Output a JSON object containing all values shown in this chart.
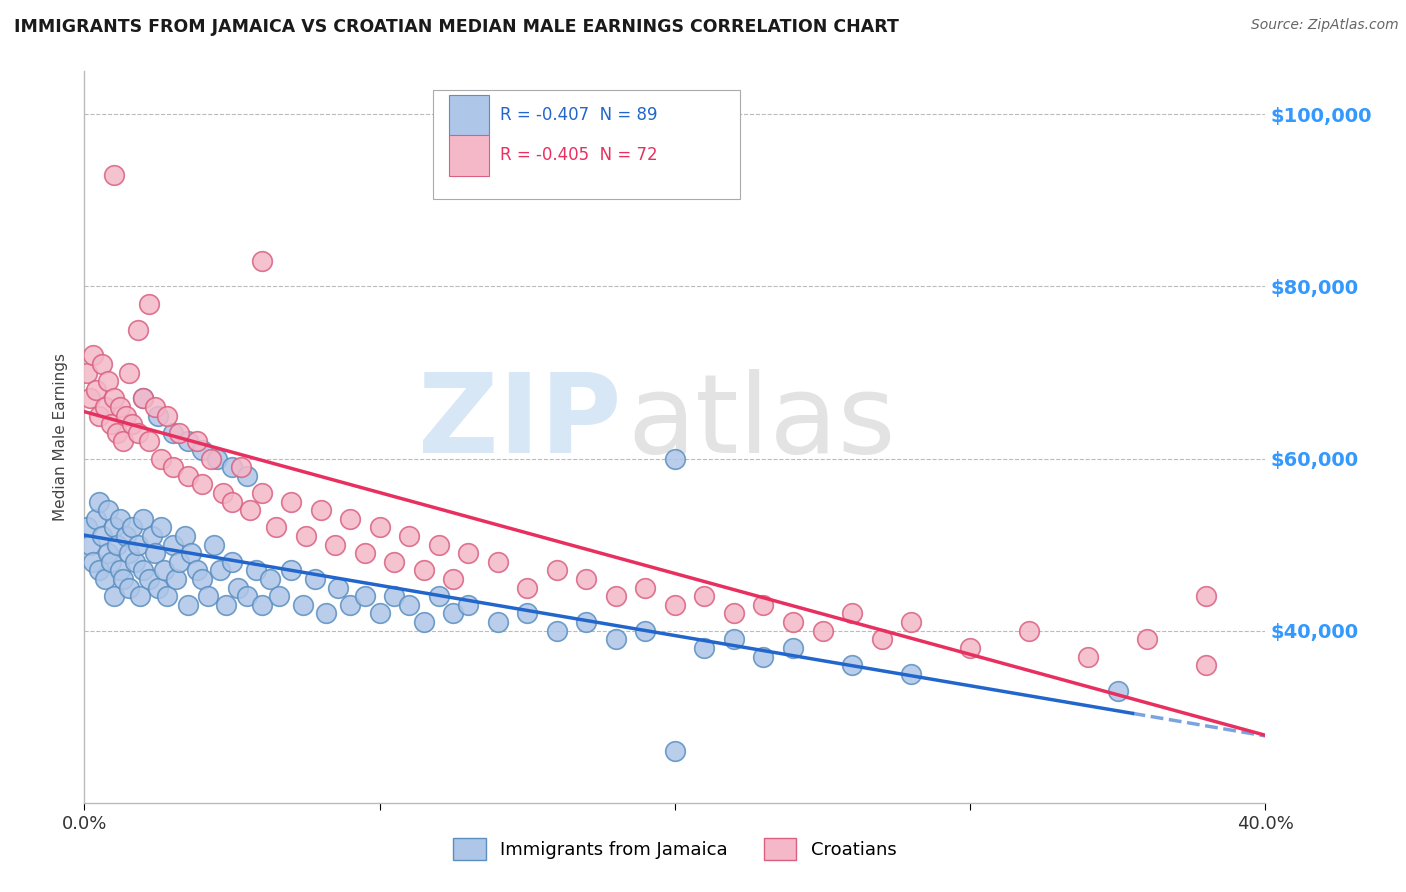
{
  "title": "IMMIGRANTS FROM JAMAICA VS CROATIAN MEDIAN MALE EARNINGS CORRELATION CHART",
  "source": "Source: ZipAtlas.com",
  "ylabel": "Median Male Earnings",
  "xlim": [
    0.0,
    0.4
  ],
  "ylim": [
    20000,
    105000
  ],
  "yticks": [
    40000,
    60000,
    80000,
    100000
  ],
  "ytick_labels": [
    "$40,000",
    "$60,000",
    "$80,000",
    "$100,000"
  ],
  "xticks": [
    0.0,
    0.1,
    0.2,
    0.3,
    0.4
  ],
  "xtick_labels": [
    "0.0%",
    "",
    "",
    "",
    "40.0%"
  ],
  "series1_label": "Immigrants from Jamaica",
  "series2_label": "Croatians",
  "series1_color": "#aec6e8",
  "series2_color": "#f4b8c8",
  "series1_edge": "#5a8fc0",
  "series2_edge": "#d96080",
  "line1_color": "#2266cc",
  "line2_color": "#e83060",
  "R1": -0.407,
  "N1": 89,
  "R2": -0.405,
  "N2": 72,
  "background_color": "#ffffff",
  "grid_color": "#bbbbbb",
  "title_color": "#1a1a1a",
  "jamaica_x": [
    0.001,
    0.002,
    0.003,
    0.004,
    0.005,
    0.005,
    0.006,
    0.007,
    0.008,
    0.008,
    0.009,
    0.01,
    0.01,
    0.011,
    0.012,
    0.012,
    0.013,
    0.014,
    0.015,
    0.015,
    0.016,
    0.017,
    0.018,
    0.019,
    0.02,
    0.02,
    0.022,
    0.023,
    0.024,
    0.025,
    0.026,
    0.027,
    0.028,
    0.03,
    0.031,
    0.032,
    0.034,
    0.035,
    0.036,
    0.038,
    0.04,
    0.042,
    0.044,
    0.046,
    0.048,
    0.05,
    0.052,
    0.055,
    0.058,
    0.06,
    0.063,
    0.066,
    0.07,
    0.074,
    0.078,
    0.082,
    0.086,
    0.09,
    0.095,
    0.1,
    0.105,
    0.11,
    0.115,
    0.12,
    0.125,
    0.13,
    0.14,
    0.15,
    0.16,
    0.17,
    0.18,
    0.19,
    0.2,
    0.21,
    0.22,
    0.23,
    0.24,
    0.26,
    0.28,
    0.2,
    0.02,
    0.025,
    0.03,
    0.035,
    0.04,
    0.045,
    0.05,
    0.055,
    0.35
  ],
  "jamaica_y": [
    52000,
    50000,
    48000,
    53000,
    47000,
    55000,
    51000,
    46000,
    54000,
    49000,
    48000,
    52000,
    44000,
    50000,
    47000,
    53000,
    46000,
    51000,
    49000,
    45000,
    52000,
    48000,
    50000,
    44000,
    47000,
    53000,
    46000,
    51000,
    49000,
    45000,
    52000,
    47000,
    44000,
    50000,
    46000,
    48000,
    51000,
    43000,
    49000,
    47000,
    46000,
    44000,
    50000,
    47000,
    43000,
    48000,
    45000,
    44000,
    47000,
    43000,
    46000,
    44000,
    47000,
    43000,
    46000,
    42000,
    45000,
    43000,
    44000,
    42000,
    44000,
    43000,
    41000,
    44000,
    42000,
    43000,
    41000,
    42000,
    40000,
    41000,
    39000,
    40000,
    60000,
    38000,
    39000,
    37000,
    38000,
    36000,
    35000,
    26000,
    67000,
    65000,
    63000,
    62000,
    61000,
    60000,
    59000,
    58000,
    33000
  ],
  "croatian_x": [
    0.001,
    0.002,
    0.003,
    0.004,
    0.005,
    0.006,
    0.007,
    0.008,
    0.009,
    0.01,
    0.011,
    0.012,
    0.013,
    0.014,
    0.015,
    0.016,
    0.018,
    0.02,
    0.022,
    0.024,
    0.026,
    0.028,
    0.03,
    0.032,
    0.035,
    0.038,
    0.04,
    0.043,
    0.047,
    0.05,
    0.053,
    0.056,
    0.06,
    0.065,
    0.07,
    0.075,
    0.08,
    0.085,
    0.09,
    0.095,
    0.1,
    0.105,
    0.11,
    0.115,
    0.12,
    0.125,
    0.13,
    0.14,
    0.15,
    0.16,
    0.17,
    0.18,
    0.19,
    0.2,
    0.21,
    0.22,
    0.23,
    0.24,
    0.25,
    0.26,
    0.27,
    0.28,
    0.3,
    0.32,
    0.34,
    0.36,
    0.38,
    0.018,
    0.022,
    0.06,
    0.38,
    0.01
  ],
  "croatian_y": [
    70000,
    67000,
    72000,
    68000,
    65000,
    71000,
    66000,
    69000,
    64000,
    67000,
    63000,
    66000,
    62000,
    65000,
    70000,
    64000,
    63000,
    67000,
    62000,
    66000,
    60000,
    65000,
    59000,
    63000,
    58000,
    62000,
    57000,
    60000,
    56000,
    55000,
    59000,
    54000,
    56000,
    52000,
    55000,
    51000,
    54000,
    50000,
    53000,
    49000,
    52000,
    48000,
    51000,
    47000,
    50000,
    46000,
    49000,
    48000,
    45000,
    47000,
    46000,
    44000,
    45000,
    43000,
    44000,
    42000,
    43000,
    41000,
    40000,
    42000,
    39000,
    41000,
    38000,
    40000,
    37000,
    39000,
    36000,
    75000,
    78000,
    83000,
    44000,
    93000
  ]
}
